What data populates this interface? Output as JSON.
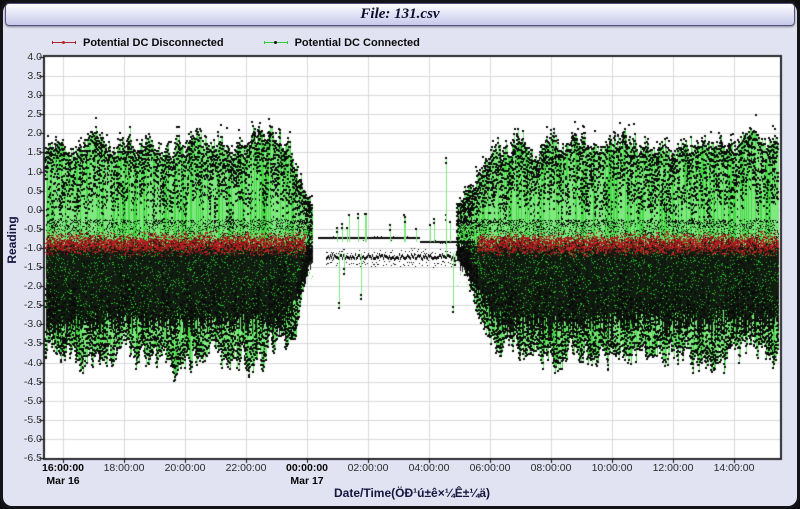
{
  "window": {
    "title": "File: 131.csv"
  },
  "legend": {
    "items": [
      {
        "label": "Potential DC Disconnected",
        "marker": "red-line-dot",
        "line_color": "#b02828",
        "dot_color": "#b02828"
      },
      {
        "label": "Potential DC Connected",
        "marker": "green-line-black-dot",
        "line_color": "#33cc33",
        "dot_color": "#111111"
      }
    ]
  },
  "axes": {
    "y": {
      "title": "Reading",
      "max": 4.0,
      "min": -6.5,
      "step": 0.5,
      "tick_labels": [
        "4.0",
        "3.5",
        "3.0",
        "2.5",
        "2.0",
        "1.5",
        "1.0",
        "0.5",
        "0.0",
        "-0.5",
        "-1.0",
        "-1.5",
        "-2.0",
        "-2.5",
        "-3.0",
        "-3.5",
        "-4.0",
        "-4.5",
        "-5.0",
        "-5.5",
        "-6.0",
        "-6.5"
      ]
    },
    "x": {
      "title": "Date/Time(ÖÐ¹ú±ê×¼Ê±¼ä)",
      "ticks": [
        {
          "hour": 0,
          "label": "16:00:00",
          "date": "Mar 16",
          "bold": true
        },
        {
          "hour": 2,
          "label": "18:00:00"
        },
        {
          "hour": 4,
          "label": "20:00:00"
        },
        {
          "hour": 6,
          "label": "22:00:00"
        },
        {
          "hour": 8,
          "label": "00:00:00",
          "date": "Mar 17",
          "bold": true
        },
        {
          "hour": 10,
          "label": "02:00:00"
        },
        {
          "hour": 12,
          "label": "04:00:00"
        },
        {
          "hour": 14,
          "label": "06:00:00"
        },
        {
          "hour": 16,
          "label": "08:00:00"
        },
        {
          "hour": 18,
          "label": "10:00:00"
        },
        {
          "hour": 20,
          "label": "12:00:00"
        },
        {
          "hour": 22,
          "label": "14:00:00"
        }
      ]
    }
  },
  "chart_data": {
    "type": "scatter",
    "title": "File: 131.csv",
    "xlabel": "Date/Time(ÖÐ¹ú±ê×¼Ê±¼ä)",
    "ylabel": "Reading",
    "ylim": [
      -6.5,
      4.0
    ],
    "ytick_step": 0.5,
    "x_unit": "hours since Mar 16 16:00:00",
    "x_range_hours": [
      -0.59,
      23.51
    ],
    "grid": true,
    "legend_position": "top-left",
    "seed": 1313,
    "series": [
      {
        "name": "Potential DC Disconnected",
        "color": "#b02424",
        "style": "dense-noise-band",
        "band_center": -0.88,
        "band_halfwidth": 0.3,
        "active_hours": [
          [
            -0.59,
            7.95
          ],
          [
            13.6,
            23.51
          ]
        ]
      },
      {
        "name": "Potential DC Connected",
        "line_color": "#7fe87f",
        "line_color_alt": "#46d846",
        "marker_color": "#0a0a0a",
        "style": "dense-spike-noise-with-markers",
        "core_band": [
          -0.8,
          -2.5
        ],
        "spike_up_typical": 2.0,
        "spike_up_max": 2.7,
        "spike_down_typical": -4.0,
        "spike_down_max": -5.5,
        "segments": [
          {
            "hours": [
              -0.59,
              7.3
            ],
            "mode": "active",
            "amp": 1
          },
          {
            "hours": [
              7.3,
              8.2
            ],
            "mode": "ramp",
            "amp_from": 1,
            "amp_to": 0
          },
          {
            "hours": [
              8.2,
              12.85
            ],
            "mode": "quiet",
            "upper_line": -0.73,
            "upper_line_late": -0.85,
            "upper_switch_hour": 11.7,
            "lower_band": -1.22,
            "spike_prob": 0.13,
            "quiet_spike_up_max": -0.1,
            "quiet_spike_down_max": -2.7,
            "big_spike": {
              "hour": 12.55,
              "top": 1.35,
              "base": -1.25
            }
          },
          {
            "hours": [
              12.85,
              14.3
            ],
            "mode": "ramp",
            "amp_from": 0,
            "amp_to": 1
          },
          {
            "hours": [
              14.3,
              23.51
            ],
            "mode": "active",
            "amp": 1
          }
        ]
      }
    ]
  },
  "colors": {
    "frame_border": "#131318",
    "panel_bg": "#e2e3f2",
    "plot_bg": "#ffffff",
    "grid": "#d9dade",
    "plot_border": "#26262e",
    "tick_color": "#111111",
    "tick_text": "#2a2a2a",
    "tick_text_bold": "#060606",
    "axis_title_text": "#15153f",
    "title_text": "#0e0e2e",
    "legend_text": "#0b0b0b",
    "red_dots": [
      "#a61f1f",
      "#c02828",
      "#8c1717"
    ],
    "black_marker": "#0a0a0a",
    "green_speckle": "#26c626"
  }
}
